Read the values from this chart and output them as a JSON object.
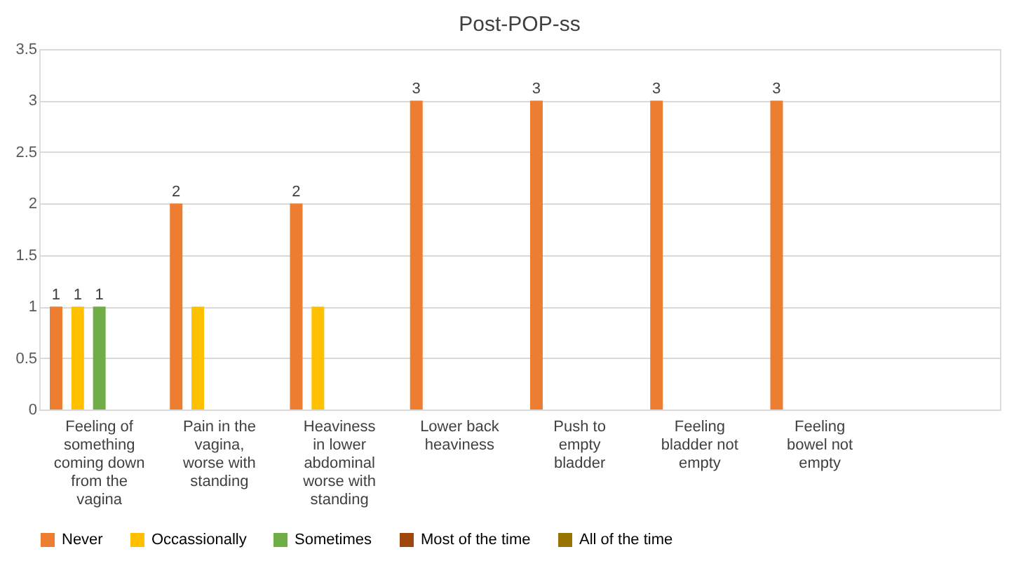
{
  "chart_data": {
    "type": "bar",
    "title": "Post-POP-ss",
    "categories": [
      "Feeling of something coming down from the vagina",
      "Pain in the vagina, worse with standing",
      "Heaviness in lower abdominal worse with standing",
      "Lower back heaviness",
      "Push to empty bladder",
      "Feeling bladder not empty",
      "Feeling bowel not empty",
      null
    ],
    "series": [
      {
        "name": "Never",
        "color": "#ed7d31",
        "values": [
          1,
          2,
          2,
          3,
          3,
          3,
          3,
          null
        ],
        "value_labels": [
          "1",
          "2",
          "2",
          "3",
          "3",
          "3",
          "3",
          null
        ]
      },
      {
        "name": "Occassionally",
        "color": "#ffc000",
        "values": [
          1,
          1,
          1,
          null,
          null,
          null,
          null,
          null
        ],
        "value_labels": [
          "1",
          null,
          null,
          null,
          null,
          null,
          null,
          null
        ]
      },
      {
        "name": "Sometimes",
        "color": "#70ad47",
        "values": [
          1,
          null,
          null,
          null,
          null,
          null,
          null,
          null
        ],
        "value_labels": [
          "1",
          null,
          null,
          null,
          null,
          null,
          null,
          null
        ]
      },
      {
        "name": "Most of the time",
        "color": "#9e480e",
        "values": [
          null,
          null,
          null,
          null,
          null,
          null,
          null,
          null
        ]
      },
      {
        "name": "All of the time",
        "color": "#997300",
        "values": [
          null,
          null,
          null,
          null,
          null,
          null,
          null,
          null
        ]
      }
    ],
    "ylim": [
      0,
      3.5
    ],
    "yticks": [
      0,
      0.5,
      1,
      1.5,
      2,
      2.5,
      3,
      3.5
    ],
    "grid": "y",
    "legend": "bottom"
  }
}
